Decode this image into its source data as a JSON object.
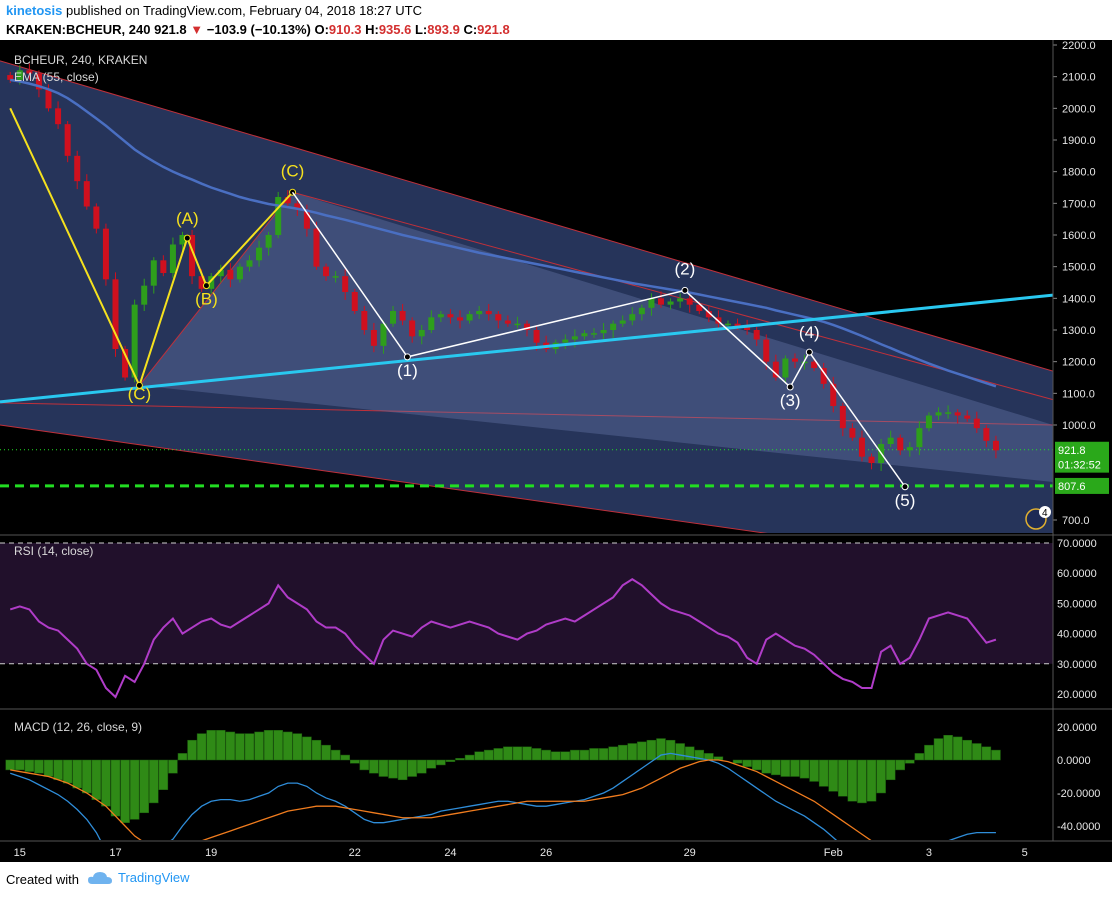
{
  "header": {
    "username": "kinetosis",
    "published_text": "published on TradingView.com, February 04, 2018 18:27 UTC",
    "symbol": "KRAKEN:BCHEUR, 240",
    "last": "921.8",
    "change": "−103.9 (−10.13%)",
    "o_label": "O:",
    "o_value": "910.3",
    "h_label": "H:",
    "h_value": "935.6",
    "l_label": "L:",
    "l_value": "893.9",
    "c_label": "C:",
    "c_value": "921.8"
  },
  "footer": {
    "created_with": "Created with",
    "brand": "TradingView"
  },
  "colors": {
    "background": "#000000",
    "up_candle": "#2e9e1c",
    "down_candle": "#d0101e",
    "ema": "#4a6fc2",
    "trendline": "#29c8f0",
    "support": "#22dd22",
    "rsi_line": "#b03cc8",
    "macd_hist": "#2f8a16",
    "macd_line": "#2f8dd9",
    "signal_line": "#f07c1e",
    "wave_yellow": "#f5e11e",
    "wave_white": "#ffffff"
  },
  "chart_data": [
    {
      "type": "candlestick",
      "title": "BCHEUR, 240, KRAKEN",
      "indicator": "EMA (55, close)",
      "x_tick_labels": [
        "15",
        "17",
        "19",
        "22",
        "24",
        "26",
        "29",
        "Feb",
        "3",
        "5"
      ],
      "x_tick_index": [
        1,
        11,
        21,
        36,
        46,
        56,
        71,
        86,
        96,
        106
      ],
      "y_tick_labels": [
        "2200.0",
        "2100.0",
        "2000.0",
        "1900.0",
        "1800.0",
        "1700.0",
        "1600.0",
        "1500.0",
        "1400.0",
        "1300.0",
        "1200.0",
        "1100.0",
        "1000.0",
        "700.0"
      ],
      "ylim": [
        690,
        2210
      ],
      "last_price_label": "921.8",
      "countdown_label": "01:32:52",
      "support_label": "807.6",
      "support_level": 807.6,
      "alert_badge": "4",
      "closes": [
        2090,
        2120,
        2110,
        2060,
        2000,
        1950,
        1850,
        1770,
        1690,
        1620,
        1460,
        1240,
        1150,
        1380,
        1440,
        1520,
        1480,
        1570,
        1600,
        1470,
        1430,
        1470,
        1490,
        1460,
        1500,
        1520,
        1560,
        1600,
        1720,
        1700,
        1680,
        1620,
        1500,
        1470,
        1470,
        1420,
        1360,
        1300,
        1250,
        1320,
        1360,
        1330,
        1280,
        1300,
        1340,
        1350,
        1340,
        1330,
        1350,
        1360,
        1350,
        1330,
        1320,
        1320,
        1300,
        1260,
        1240,
        1260,
        1270,
        1280,
        1290,
        1290,
        1300,
        1320,
        1330,
        1350,
        1370,
        1400,
        1380,
        1390,
        1400,
        1380,
        1360,
        1340,
        1320,
        1320,
        1310,
        1300,
        1270,
        1200,
        1150,
        1210,
        1200,
        1200,
        1180,
        1130,
        1060,
        990,
        960,
        900,
        880,
        940,
        960,
        920,
        930,
        990,
        1030,
        1040,
        1040,
        1030,
        1020,
        990,
        950,
        920
      ],
      "ema": [
        2090,
        2085,
        2078,
        2070,
        2060,
        2048,
        2032,
        2012,
        1990,
        1968,
        1945,
        1920,
        1895,
        1870,
        1850,
        1832,
        1815,
        1800,
        1787,
        1775,
        1762,
        1750,
        1740,
        1730,
        1720,
        1712,
        1705,
        1698,
        1693,
        1688,
        1683,
        1677,
        1670,
        1662,
        1655,
        1648,
        1640,
        1632,
        1624,
        1616,
        1608,
        1600,
        1593,
        1586,
        1579,
        1572,
        1565,
        1558,
        1551,
        1544,
        1538,
        1532,
        1526,
        1520,
        1514,
        1508,
        1502,
        1496,
        1490,
        1484,
        1478,
        1472,
        1466,
        1460,
        1454,
        1448,
        1443,
        1438,
        1433,
        1428,
        1423,
        1418,
        1412,
        1406,
        1400,
        1394,
        1388,
        1382,
        1376,
        1370,
        1362,
        1355,
        1348,
        1341,
        1334,
        1326,
        1316,
        1305,
        1293,
        1281,
        1268,
        1255,
        1243,
        1230,
        1218,
        1206,
        1194,
        1183,
        1172,
        1162,
        1152,
        1142,
        1132,
        1122
      ],
      "wave_labels": [
        "(C)",
        "(A)",
        "(B)",
        "(C)",
        "(1)",
        "(2)",
        "(3)",
        "(4)",
        "(5)"
      ],
      "channel_boundary_values": {
        "upper_start": 2150,
        "upper_end": 1170,
        "lower_start": 1000,
        "lower_end": 530
      }
    },
    {
      "type": "line",
      "title": "RSI (14, close)",
      "y_tick_labels": [
        "70.0000",
        "60.0000",
        "50.0000",
        "40.0000",
        "30.0000",
        "20.0000"
      ],
      "ylim": [
        14,
        74
      ],
      "bands": [
        30,
        70
      ],
      "values": [
        48,
        49,
        48,
        44,
        42,
        41,
        38,
        35,
        30,
        28,
        22,
        19,
        26,
        24,
        30,
        38,
        42,
        45,
        40,
        42,
        44,
        45,
        43,
        42,
        44,
        46,
        48,
        50,
        56,
        52,
        50,
        48,
        44,
        42,
        42,
        40,
        36,
        33,
        30,
        38,
        41,
        40,
        39,
        42,
        44,
        43,
        42,
        43,
        44,
        43,
        42,
        40,
        39,
        38,
        40,
        41,
        43,
        44,
        45,
        44,
        46,
        48,
        50,
        52,
        56,
        58,
        56,
        53,
        50,
        48,
        47,
        46,
        44,
        42,
        40,
        39,
        37,
        32,
        30,
        38,
        40,
        38,
        36,
        35,
        33,
        30,
        27,
        25,
        24,
        22,
        22,
        34,
        36,
        30,
        32,
        38,
        45,
        46,
        47,
        46,
        45,
        41,
        37,
        38
      ]
    },
    {
      "type": "bar",
      "title": "MACD (12, 26, close, 9)",
      "y_tick_labels": [
        "20.0000",
        "0.0000",
        "-20.0000",
        "-40.0000"
      ],
      "ylim": [
        -48,
        30
      ],
      "histogram": [
        -6,
        -6,
        -7,
        -8,
        -10,
        -12,
        -14,
        -17,
        -20,
        -24,
        -28,
        -34,
        -38,
        -36,
        -32,
        -26,
        -18,
        -8,
        4,
        12,
        16,
        18,
        18,
        17,
        16,
        16,
        17,
        18,
        18,
        17,
        16,
        14,
        12,
        9,
        6,
        3,
        -2,
        -6,
        -8,
        -10,
        -11,
        -12,
        -10,
        -8,
        -5,
        -3,
        -1,
        1,
        3,
        5,
        6,
        7,
        8,
        8,
        8,
        7,
        6,
        5,
        5,
        6,
        6,
        7,
        7,
        8,
        9,
        10,
        11,
        12,
        13,
        12,
        10,
        8,
        6,
        4,
        2,
        0,
        -2,
        -4,
        -6,
        -8,
        -9,
        -10,
        -10,
        -11,
        -13,
        -16,
        -19,
        -22,
        -25,
        -26,
        -25,
        -20,
        -12,
        -6,
        -2,
        4,
        9,
        13,
        15,
        14,
        12,
        10,
        8,
        6
      ],
      "macd": [
        -8,
        -10,
        -12,
        -15,
        -18,
        -21,
        -25,
        -30,
        -36,
        -44,
        -55,
        -70,
        -78,
        -72,
        -65,
        -58,
        -52,
        -48,
        -40,
        -33,
        -28,
        -25,
        -24,
        -24,
        -25,
        -24,
        -22,
        -20,
        -16,
        -14,
        -14,
        -16,
        -20,
        -23,
        -25,
        -28,
        -32,
        -36,
        -38,
        -38,
        -37,
        -36,
        -35,
        -34,
        -33,
        -31,
        -30,
        -29,
        -28,
        -27,
        -26,
        -25,
        -25,
        -26,
        -27,
        -28,
        -28,
        -27,
        -26,
        -25,
        -24,
        -22,
        -20,
        -17,
        -13,
        -9,
        -5,
        -1,
        3,
        4,
        3,
        2,
        1,
        0,
        -2,
        -5,
        -9,
        -13,
        -17,
        -21,
        -25,
        -28,
        -31,
        -34,
        -38,
        -42,
        -47,
        -52,
        -56,
        -60,
        -62,
        -63,
        -62,
        -61,
        -60,
        -58,
        -55,
        -52,
        -49,
        -47,
        -45,
        -44,
        -44,
        -44
      ],
      "signal": [
        -6,
        -7,
        -8,
        -9,
        -10,
        -12,
        -14,
        -17,
        -20,
        -24,
        -28,
        -34,
        -40,
        -46,
        -50,
        -53,
        -54,
        -54,
        -53,
        -51,
        -49,
        -47,
        -45,
        -43,
        -41,
        -39,
        -37,
        -35,
        -33,
        -31,
        -30,
        -29,
        -28,
        -28,
        -28,
        -29,
        -30,
        -31,
        -32,
        -33,
        -34,
        -35,
        -35,
        -35,
        -35,
        -34,
        -33,
        -32,
        -31,
        -30,
        -29,
        -28,
        -27,
        -26,
        -25,
        -25,
        -25,
        -25,
        -25,
        -25,
        -25,
        -24,
        -23,
        -22,
        -21,
        -19,
        -17,
        -14,
        -11,
        -8,
        -5,
        -3,
        -1,
        0,
        0,
        -1,
        -3,
        -5,
        -7,
        -10,
        -13,
        -16,
        -19,
        -22,
        -25,
        -29,
        -33,
        -37,
        -41,
        -45,
        -49,
        -52,
        -55,
        -57,
        -59,
        -60,
        -60,
        -60,
        -59,
        -58,
        -57,
        -56,
        -55,
        -54
      ]
    }
  ]
}
